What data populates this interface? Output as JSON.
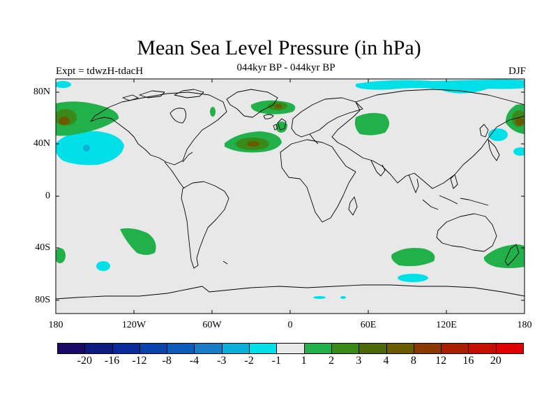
{
  "title": "Mean Sea Level Pressure (in hPa)",
  "subtitle": "044kyr BP - 044kyr BP",
  "experiment": "Expt = tdwzH-tdacH",
  "season": "DJF",
  "axes": {
    "lat_labels": [
      "80N",
      "40N",
      "0",
      "40S",
      "80S"
    ],
    "lon_labels": [
      "180",
      "120W",
      "60W",
      "0",
      "60E",
      "120E",
      "180"
    ]
  },
  "colorbar": {
    "labels": [
      "-20",
      "-16",
      "-12",
      "-8",
      "-4",
      "-3",
      "-2",
      "-1",
      "1",
      "2",
      "3",
      "4",
      "8",
      "12",
      "16",
      "20"
    ],
    "colors": [
      "#1a0a66",
      "#0d1a80",
      "#0a2a99",
      "#0a44aa",
      "#0d5db8",
      "#1a7cc4",
      "#0ab0d8",
      "#00e0e8",
      "#e8e8e8",
      "#22b04a",
      "#3a8a1a",
      "#4a6a0a",
      "#6a5a00",
      "#8a3a00",
      "#a82000",
      "#c40e00",
      "#e00000"
    ]
  },
  "colors": {
    "background": "#e8e8e8",
    "coast": "#000000",
    "negative_1": "#00e0e8",
    "negative_2": "#0ab0d8",
    "positive_1": "#22b04a",
    "positive_2": "#3a8a1a",
    "positive_3": "#6a5a00"
  }
}
